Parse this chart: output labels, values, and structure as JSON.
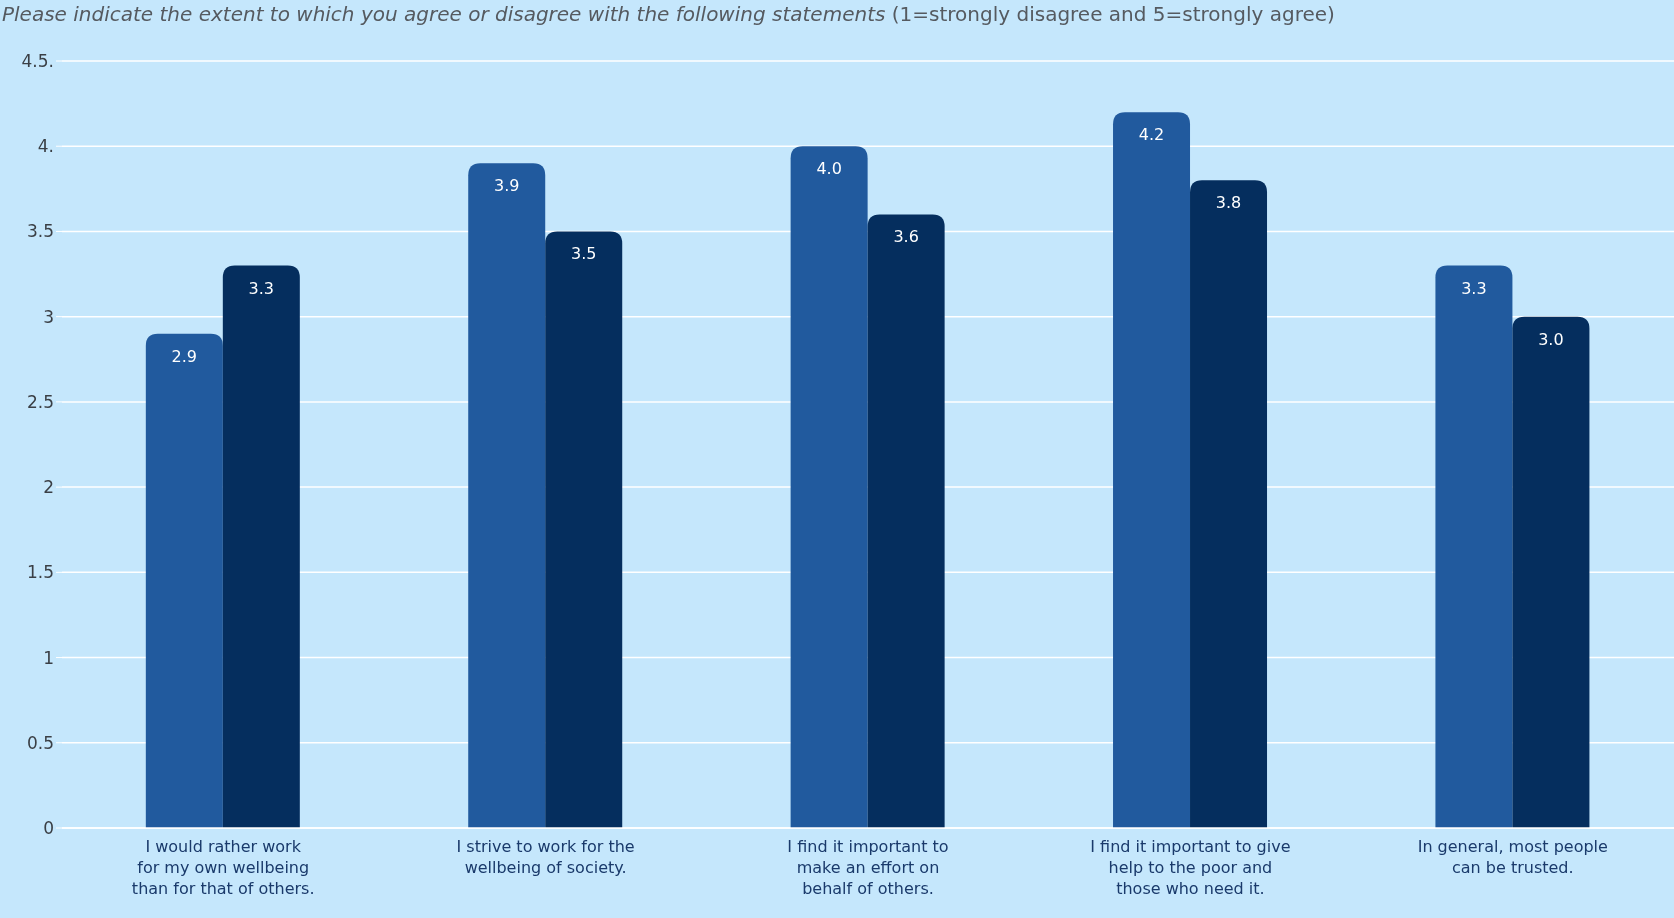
{
  "chart_data": {
    "type": "bar",
    "title": "Please indicate the extent to which you agree or disagree with the following statements",
    "subtitle": "(1=strongly disagree and 5=strongly agree)",
    "categories": [
      "I would rather work\nfor my own wellbeing\nthan for that of others.",
      "I strive to work for the\nwellbeing of society.",
      "I find it important to\nmake an effort on\nbehalf of others.",
      "I find it important to give\nhelp to the poor and\nthose who need it.",
      "In general, most people\ncan be trusted."
    ],
    "series": [
      {
        "color": "#215a9e",
        "values": [
          2.9,
          3.9,
          4.0,
          4.2,
          3.3
        ],
        "value_labels": [
          "2.9",
          "3.9",
          "4.0",
          "4.2",
          "3.3"
        ]
      },
      {
        "color": "#052e5e",
        "values": [
          3.3,
          3.5,
          3.6,
          3.8,
          3.0
        ],
        "value_labels": [
          "3.3",
          "3.5",
          "3.6",
          "3.8",
          "3.0"
        ]
      }
    ],
    "ylim": [
      0,
      4.5
    ],
    "yticks": [
      0,
      0.5,
      1,
      1.5,
      2,
      2.5,
      3,
      3.5,
      {
        "value": 4,
        "label": "4."
      },
      {
        "value": 4.5,
        "label": "4.5."
      }
    ],
    "grid": "y"
  }
}
